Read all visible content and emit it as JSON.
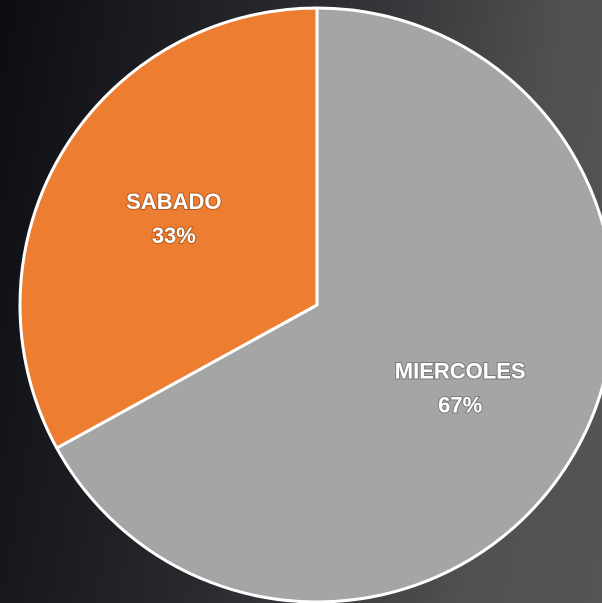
{
  "chart_data": {
    "type": "pie",
    "categories": [
      "MIERCOLES",
      "SABADO"
    ],
    "values": [
      67,
      33
    ],
    "value_labels": [
      "67%",
      "33%"
    ],
    "colors": [
      "#a5a5a5",
      "#ed7d31"
    ]
  }
}
